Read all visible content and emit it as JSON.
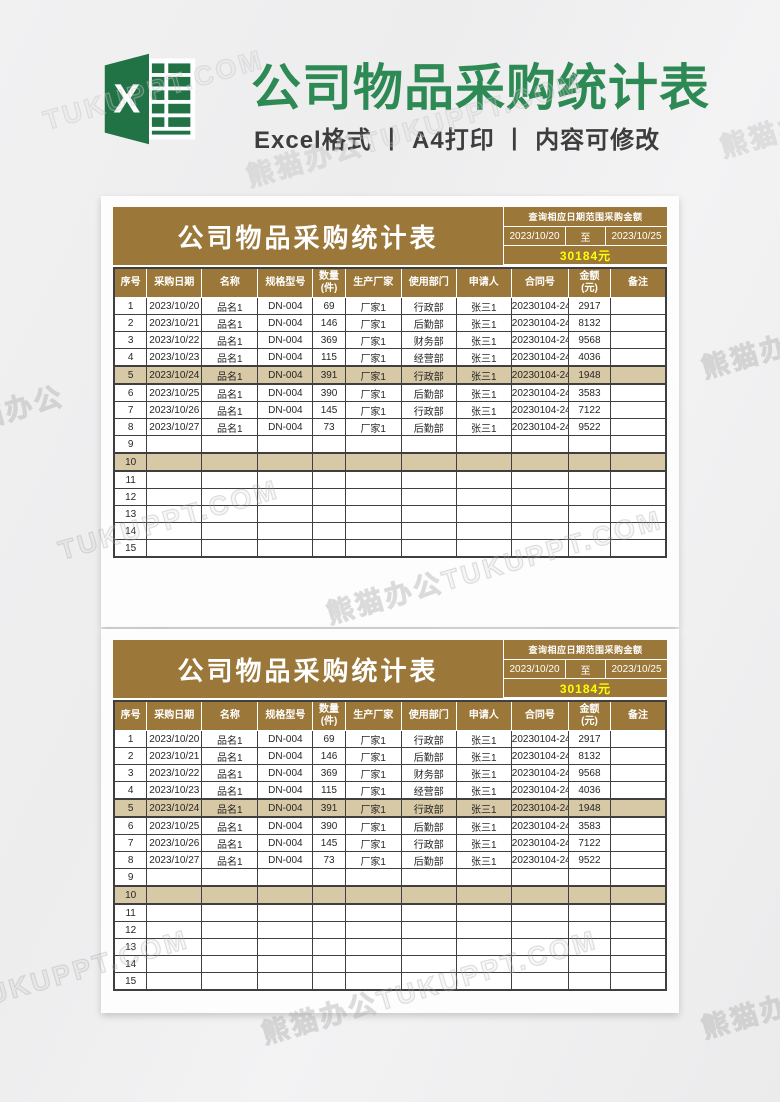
{
  "header": {
    "logo": "excel-logo",
    "title": "公司物品采购统计表",
    "subtitle": "Excel格式 丨 A4打印 丨 内容可修改"
  },
  "colors": {
    "excel_green": "#217346",
    "title_green": "#2e8a55",
    "table_brown": "#9b7839",
    "highlight_tan": "#d7c8a6",
    "amount_yellow": "#ffff00",
    "grid_border": "#3f3f3f"
  },
  "watermark": {
    "full": "熊猫办公TUKUPPT.COM",
    "site": "TUKUPPT.COM",
    "brand": "熊猫办公",
    "short": "熊猫办"
  },
  "sheet": {
    "title": "公司物品采购统计表",
    "query": {
      "label": "查询相应日期范围采购金额",
      "date_from": "2023/10/20",
      "to_label": "至",
      "date_to": "2023/10/25",
      "amount": "30184元"
    },
    "columns": [
      "序号",
      "采购日期",
      "名称",
      "规格型号",
      "数量\n(件)",
      "生产厂家",
      "使用部门",
      "申请人",
      "合同号",
      "金额\n(元)",
      "备注"
    ],
    "rows": [
      [
        "1",
        "2023/10/20",
        "品名1",
        "DN-004",
        "69",
        "厂家1",
        "行政部",
        "张三1",
        "20230104-24",
        "2917",
        ""
      ],
      [
        "2",
        "2023/10/21",
        "品名1",
        "DN-004",
        "146",
        "厂家1",
        "后勤部",
        "张三1",
        "20230104-24",
        "8132",
        ""
      ],
      [
        "3",
        "2023/10/22",
        "品名1",
        "DN-004",
        "369",
        "厂家1",
        "财务部",
        "张三1",
        "20230104-24",
        "9568",
        ""
      ],
      [
        "4",
        "2023/10/23",
        "品名1",
        "DN-004",
        "115",
        "厂家1",
        "经营部",
        "张三1",
        "20230104-24",
        "4036",
        ""
      ],
      [
        "5",
        "2023/10/24",
        "品名1",
        "DN-004",
        "391",
        "厂家1",
        "行政部",
        "张三1",
        "20230104-24",
        "1948",
        ""
      ],
      [
        "6",
        "2023/10/25",
        "品名1",
        "DN-004",
        "390",
        "厂家1",
        "后勤部",
        "张三1",
        "20230104-24",
        "3583",
        ""
      ],
      [
        "7",
        "2023/10/26",
        "品名1",
        "DN-004",
        "145",
        "厂家1",
        "行政部",
        "张三1",
        "20230104-24",
        "7122",
        ""
      ],
      [
        "8",
        "2023/10/27",
        "品名1",
        "DN-004",
        "73",
        "厂家1",
        "后勤部",
        "张三1",
        "20230104-24",
        "9522",
        ""
      ]
    ],
    "total_rows": 15,
    "highlighted_rows": [
      5,
      10
    ]
  }
}
